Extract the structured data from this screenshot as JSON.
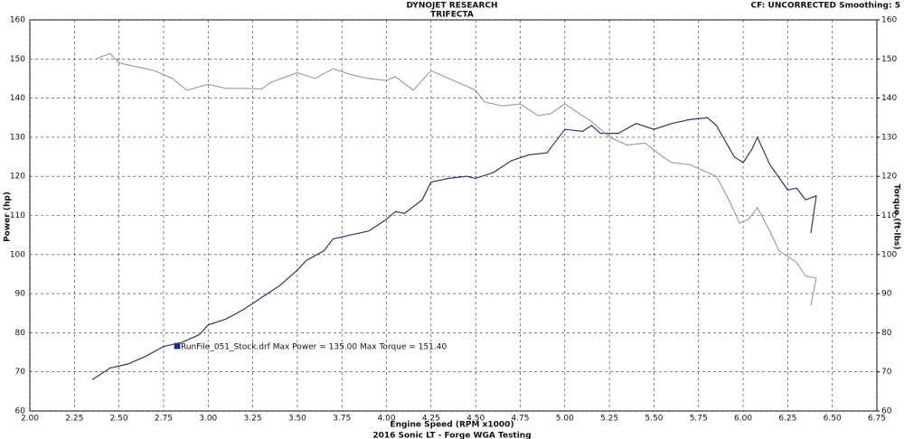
{
  "chart_data": {
    "type": "line",
    "title": "DYNOJET RESEARCH",
    "subtitle": "TRIFECTA",
    "corner_note": "CF: UNCORRECTED  Smoothing: 5",
    "x_label": "Engine Speed (RPM x1000)",
    "footer": "2016 Sonic LT - Forge WGA Testing",
    "y_label": "Power (hp)",
    "y2_label": "Torque (ft-lbs)",
    "annotation": "RunFile_051_Stock.drf Max Power = 135.00    Max Torque = 151.40",
    "grid": true,
    "xlim": [
      2,
      6.75
    ],
    "xticks": [
      {
        "value": 2,
        "label": "2.00"
      },
      {
        "value": 2.25,
        "label": "2.25"
      },
      {
        "value": 2.5,
        "label": "2.50"
      },
      {
        "value": 2.75,
        "label": "2.75"
      },
      {
        "value": 3,
        "label": "3.00"
      },
      {
        "value": 3.25,
        "label": "3.25"
      },
      {
        "value": 3.5,
        "label": "3.50"
      },
      {
        "value": 3.75,
        "label": "3.75"
      },
      {
        "value": 4,
        "label": "4.00"
      },
      {
        "value": 4.25,
        "label": "4.25"
      },
      {
        "value": 4.5,
        "label": "4.50"
      },
      {
        "value": 4.75,
        "label": "4.75"
      },
      {
        "value": 5,
        "label": "5.00"
      },
      {
        "value": 5.25,
        "label": "5.25"
      },
      {
        "value": 5.5,
        "label": "5.50"
      },
      {
        "value": 5.75,
        "label": "5.75"
      },
      {
        "value": 6,
        "label": "6.00"
      },
      {
        "value": 6.25,
        "label": "6.25"
      },
      {
        "value": 6.5,
        "label": "6.50"
      },
      {
        "value": 6.75,
        "label": "6.75"
      }
    ],
    "ylim": [
      60,
      160
    ],
    "yticks": [
      60,
      70,
      80,
      90,
      100,
      110,
      120,
      130,
      140,
      150,
      160
    ],
    "y2lim": [
      60,
      160
    ],
    "y2ticks": [
      60,
      70,
      80,
      90,
      100,
      110,
      120,
      130,
      140,
      150,
      160
    ],
    "series": [
      {
        "name": "Power",
        "color": "#2b3a6e",
        "x": [
          2.35,
          2.45,
          2.55,
          2.65,
          2.75,
          2.85,
          2.95,
          3.0,
          3.1,
          3.2,
          3.3,
          3.4,
          3.5,
          3.55,
          3.65,
          3.7,
          3.8,
          3.9,
          4.0,
          4.05,
          4.1,
          4.2,
          4.25,
          4.35,
          4.45,
          4.5,
          4.6,
          4.7,
          4.8,
          4.9,
          5.0,
          5.1,
          5.15,
          5.2,
          5.3,
          5.4,
          5.5,
          5.6,
          5.7,
          5.8,
          5.85,
          5.95,
          6.0,
          6.05,
          6.08,
          6.15,
          6.25,
          6.3,
          6.35,
          6.41,
          6.38
        ],
        "values": [
          68,
          71,
          72,
          74,
          76.5,
          77.5,
          79.5,
          82,
          83.5,
          86,
          89,
          92,
          96,
          98.5,
          101,
          104,
          105,
          106,
          109,
          111,
          110.5,
          114,
          118.5,
          119.5,
          120,
          119.5,
          121,
          124,
          125.5,
          126,
          132,
          131.5,
          133,
          131,
          131,
          133.5,
          132,
          133.5,
          134.5,
          135,
          133,
          125,
          123.5,
          127,
          130,
          123,
          116.5,
          117,
          114,
          115,
          105.5
        ]
      },
      {
        "name": "Torque",
        "color": "#a0a0a0",
        "axis": "y2",
        "x": [
          2.37,
          2.45,
          2.5,
          2.6,
          2.7,
          2.8,
          2.88,
          3.0,
          3.1,
          3.2,
          3.3,
          3.35,
          3.5,
          3.6,
          3.7,
          3.8,
          3.9,
          4.0,
          4.05,
          4.15,
          4.25,
          4.35,
          4.5,
          4.55,
          4.65,
          4.75,
          4.85,
          4.92,
          5.0,
          5.05,
          5.15,
          5.25,
          5.35,
          5.45,
          5.55,
          5.6,
          5.7,
          5.8,
          5.85,
          5.92,
          5.98,
          6.03,
          6.08,
          6.15,
          6.2,
          6.3,
          6.35,
          6.41,
          6.38
        ],
        "values": [
          150,
          151.4,
          149,
          148,
          147,
          145,
          142,
          143.5,
          142.5,
          142.5,
          142.3,
          144,
          146.5,
          145,
          147.5,
          146,
          145,
          144.5,
          145.5,
          142,
          147,
          145,
          142,
          139,
          138,
          138.5,
          135.5,
          136,
          138.5,
          137,
          134,
          130,
          128,
          128.5,
          125,
          123.5,
          123,
          121,
          120,
          114,
          108,
          109,
          112,
          106,
          101,
          98,
          94.5,
          94,
          87
        ]
      }
    ]
  }
}
